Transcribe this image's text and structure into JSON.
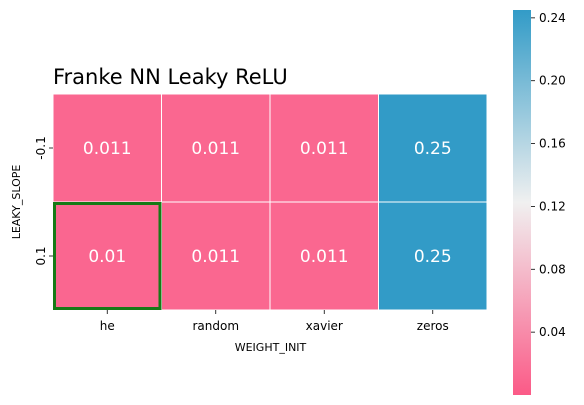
{
  "chart_data": {
    "type": "heatmap",
    "title": "Franke NN Leaky ReLU",
    "xlabel": "WEIGHT_INIT",
    "ylabel": "LEAKY_SLOPE",
    "x_categories": [
      "he",
      "random",
      "xavier",
      "zeros"
    ],
    "y_categories": [
      "-0.1",
      "0.1"
    ],
    "values": [
      [
        0.011,
        0.011,
        0.011,
        0.25
      ],
      [
        0.01,
        0.011,
        0.011,
        0.25
      ]
    ],
    "cell_labels": [
      [
        "0.011",
        "0.011",
        "0.011",
        "0.25"
      ],
      [
        "0.01",
        "0.011",
        "0.011",
        "0.25"
      ]
    ],
    "highlight": {
      "row": 1,
      "col": 0,
      "color": "#167a16"
    },
    "colorbar": {
      "range": [
        0.0,
        0.245
      ],
      "ticks": [
        0.04,
        0.08,
        0.12,
        0.16,
        0.2,
        0.24
      ],
      "tick_labels": [
        "0.04",
        "0.08",
        "0.12",
        "0.16",
        "0.20",
        "0.24"
      ],
      "colormap": [
        "#fb5a87",
        "#f0f0f0",
        "#329bc7"
      ]
    }
  }
}
